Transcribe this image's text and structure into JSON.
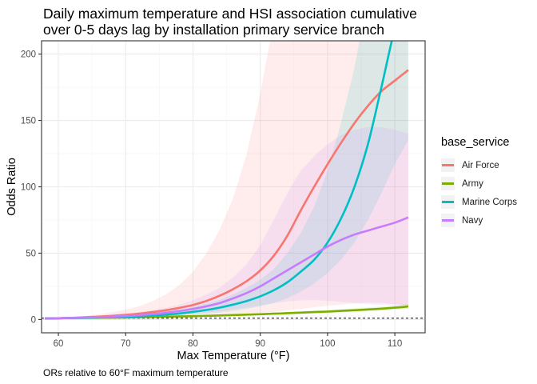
{
  "chart_data": {
    "type": "line",
    "title_lines": [
      "Daily maximum temperature and HSI association cumulative",
      "over 0-5 days lag by installation primary service branch"
    ],
    "xlabel": "Max Temperature (°F)",
    "ylabel": "Odds Ratio",
    "caption": "ORs relative to 60°F maximum temperature",
    "xlim": [
      57.5,
      114.5
    ],
    "ylim": [
      -10,
      210
    ],
    "xticks": [
      60,
      70,
      80,
      90,
      100,
      110
    ],
    "yticks": [
      0,
      50,
      100,
      150,
      200
    ],
    "reference_line": {
      "y": 1,
      "style": "dashed"
    },
    "grid": true,
    "legend": {
      "title": "base_service",
      "position": "right"
    },
    "x": [
      58,
      60,
      62,
      64,
      66,
      68,
      70,
      72,
      74,
      76,
      78,
      80,
      82,
      84,
      86,
      88,
      90,
      92,
      94,
      96,
      98,
      100,
      102,
      104,
      106,
      108,
      110,
      112
    ],
    "series": [
      {
        "name": "Air Force",
        "color": "#F8766D",
        "values": [
          0.8,
          1.0,
          1.3,
          1.7,
          2.2,
          2.8,
          3.5,
          4.4,
          5.6,
          7.0,
          8.8,
          11,
          14,
          18,
          23,
          29,
          37,
          48,
          63,
          82,
          100,
          117,
          133,
          148,
          161,
          172,
          180,
          188
        ],
        "lower": [
          0.5,
          1.0,
          1.0,
          1.1,
          1.2,
          1.3,
          1.4,
          1.6,
          1.8,
          2.0,
          2.3,
          2.6,
          3.0,
          3.5,
          4.0,
          4.5,
          5.0,
          5.8,
          6.8,
          8.0,
          9.3,
          10.3,
          11.3,
          12.2,
          12.8,
          12.5,
          11.5,
          10.5
        ],
        "upper": [
          1.3,
          1.0,
          1.8,
          2.8,
          4.0,
          5.5,
          7.5,
          10,
          14,
          19,
          26,
          36,
          50,
          68,
          92,
          125,
          170,
          225,
          300,
          380,
          450,
          520,
          600,
          680,
          760,
          840,
          920,
          1000
        ]
      },
      {
        "name": "Army",
        "color": "#7CAE00",
        "values": [
          0.9,
          1.0,
          1.1,
          1.2,
          1.3,
          1.4,
          1.5,
          1.7,
          1.9,
          2.1,
          2.3,
          2.5,
          2.8,
          3.1,
          3.4,
          3.7,
          4.0,
          4.4,
          4.8,
          5.2,
          5.6,
          6.0,
          6.5,
          7.0,
          7.6,
          8.2,
          8.9,
          9.8
        ],
        "lower": [
          0.8,
          1.0,
          1.0,
          1.1,
          1.2,
          1.3,
          1.4,
          1.5,
          1.7,
          1.8,
          2.0,
          2.2,
          2.4,
          2.6,
          2.9,
          3.1,
          3.4,
          3.7,
          4.0,
          4.3,
          4.7,
          5.0,
          5.4,
          5.8,
          6.3,
          6.8,
          7.3,
          8.0
        ],
        "upper": [
          1.0,
          1.0,
          1.2,
          1.3,
          1.4,
          1.6,
          1.7,
          1.9,
          2.1,
          2.4,
          2.6,
          2.9,
          3.2,
          3.6,
          3.9,
          4.3,
          4.7,
          5.2,
          5.7,
          6.2,
          6.7,
          7.2,
          7.8,
          8.4,
          9.1,
          9.8,
          10.7,
          11.8
        ]
      },
      {
        "name": "Marine Corps",
        "color": "#00BFC4",
        "values": [
          0.8,
          1.0,
          1.1,
          1.3,
          1.5,
          1.7,
          2.0,
          2.4,
          3.0,
          3.7,
          4.6,
          5.8,
          7.2,
          9.0,
          11.3,
          14.0,
          17.5,
          22,
          28,
          36,
          45,
          58,
          76,
          100,
          132,
          175,
          220,
          260
        ],
        "lower": [
          0.6,
          1.0,
          1.0,
          1.1,
          1.2,
          1.3,
          1.4,
          1.6,
          1.9,
          2.3,
          2.8,
          3.5,
          4.3,
          5.3,
          6.5,
          8.0,
          10.0,
          12.5,
          16,
          21,
          27,
          35,
          45,
          58,
          75,
          95,
          117,
          135
        ],
        "upper": [
          1.0,
          1.0,
          1.2,
          1.5,
          1.9,
          2.3,
          2.9,
          3.7,
          4.7,
          5.9,
          7.5,
          9.5,
          12,
          15,
          19,
          24,
          30,
          38,
          50,
          65,
          85,
          112,
          148,
          190,
          245,
          310,
          380,
          450
        ]
      },
      {
        "name": "Navy",
        "color": "#C77CFF",
        "values": [
          0.8,
          1.0,
          1.2,
          1.5,
          1.8,
          2.2,
          2.7,
          3.3,
          4.1,
          5.1,
          6.4,
          8.0,
          10,
          12.5,
          16,
          20,
          25,
          31,
          37,
          43,
          49,
          55,
          60,
          64,
          67,
          70,
          73,
          77
        ],
        "lower": [
          0.6,
          1.0,
          1.0,
          1.1,
          1.3,
          1.5,
          1.8,
          2.1,
          2.5,
          3.0,
          3.6,
          4.3,
          5.2,
          6.3,
          7.6,
          9.1,
          10.7,
          12.3,
          13.6,
          14.4,
          14.6,
          14.2,
          13.4,
          12.5,
          11.6,
          10.9,
          10.5,
          10.2
        ],
        "upper": [
          1.2,
          1.0,
          1.4,
          2.0,
          2.6,
          3.4,
          4.4,
          5.6,
          7.0,
          8.8,
          11.2,
          14.5,
          19,
          24,
          32,
          42,
          56,
          75,
          95,
          112,
          123,
          132,
          139,
          143,
          145,
          145,
          143,
          140
        ]
      }
    ],
    "bands": [
      {
        "series": "Air Force",
        "upper_name": "Air Force upper",
        "lower_name": "Air Force lower"
      },
      {
        "series": "Army",
        "upper_name": "Army upper",
        "lower_name": "Army lower"
      },
      {
        "series": "Marine Corps",
        "upper_name": "Marine Corps upper",
        "lower_name": "Marine Corps lower"
      },
      {
        "series": "Navy",
        "upper_name": "Navy upper",
        "lower_name": "Navy lower"
      }
    ],
    "colors": {
      "panel_background": "#ffffff",
      "panel_border": "#333333",
      "grid_major": "#ebebeb",
      "grid_minor": "#f5f5f5",
      "reference_line": "#000000",
      "band_opacity": 0.13
    }
  }
}
